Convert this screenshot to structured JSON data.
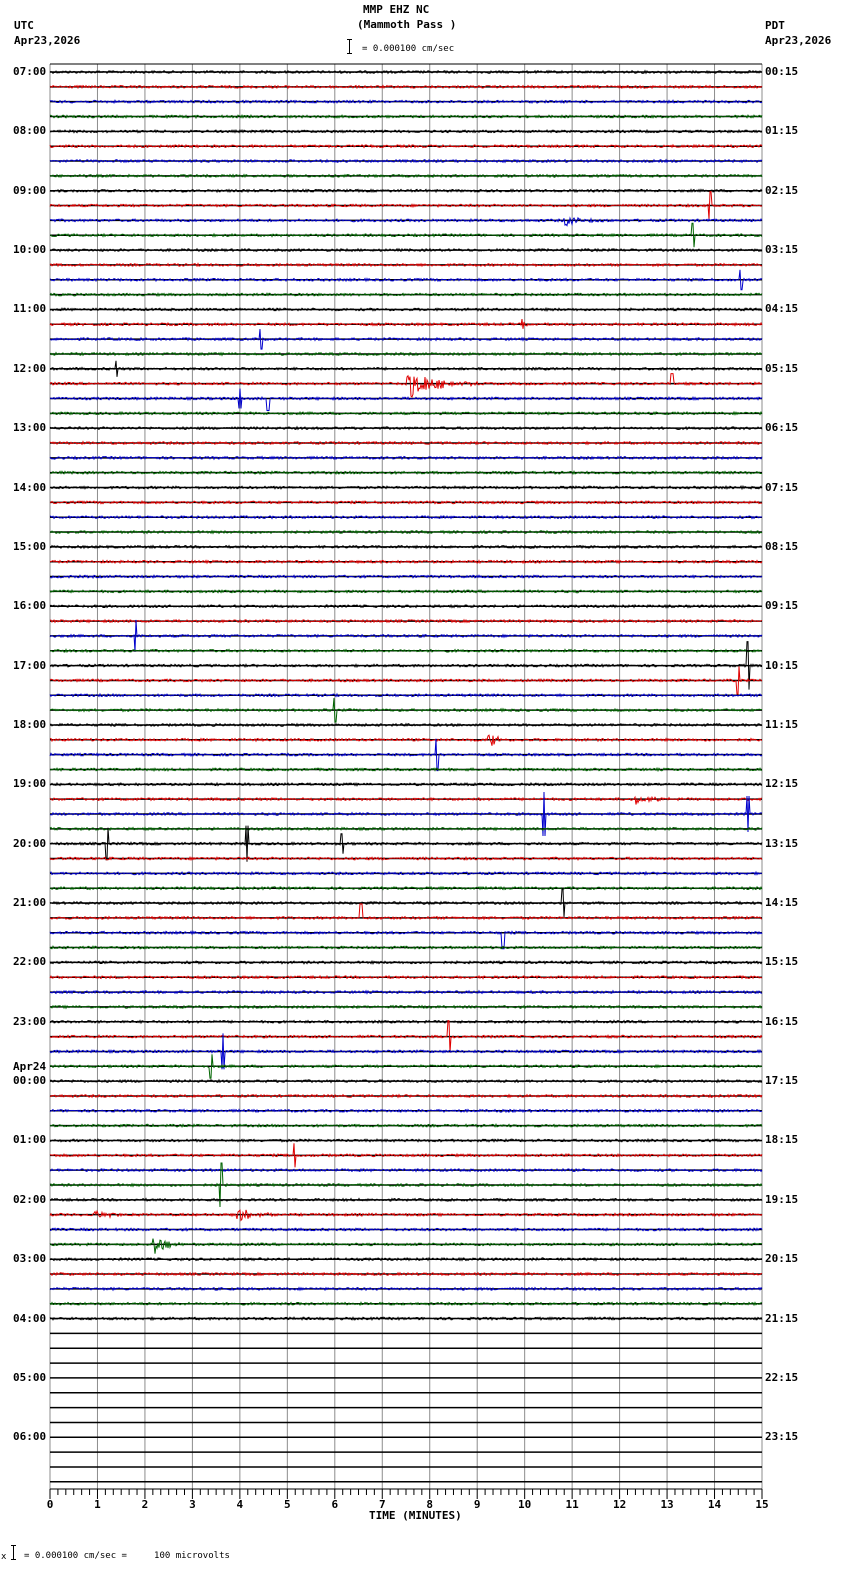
{
  "header": {
    "station": "MMP EHZ NC",
    "location": "(Mammoth Pass )",
    "scale_text": "= 0.000100 cm/sec",
    "left_tz": "UTC",
    "left_date": "Apr23,2026",
    "right_tz": "PDT",
    "right_date": "Apr23,2026"
  },
  "footer": {
    "xlabel": "TIME (MINUTES)",
    "calibration": "= 0.000100 cm/sec =     100 microvolts"
  },
  "colors": {
    "trace_cycle": [
      "#000000",
      "#e00000",
      "#0000cc",
      "#006400"
    ],
    "grid": "#8c8c8c",
    "baseline": "#000000"
  },
  "chart_data": {
    "type": "line",
    "title": "MMP EHZ NC (Mammoth Pass ) helicorder",
    "xlabel": "TIME (MINUTES)",
    "ylabel": "",
    "xlim": [
      0,
      15
    ],
    "x_ticks": [
      0,
      1,
      2,
      3,
      4,
      5,
      6,
      7,
      8,
      9,
      10,
      11,
      12,
      13,
      14,
      15
    ],
    "minor_tick_step_min": 0.1667,
    "traces_per_hour": 4,
    "trace_minutes": 15,
    "total_trace_rows": 96,
    "recorded_rows": 85,
    "left_labels_utc": [
      {
        "row": 0,
        "label": "07:00"
      },
      {
        "row": 4,
        "label": "08:00"
      },
      {
        "row": 8,
        "label": "09:00"
      },
      {
        "row": 12,
        "label": "10:00"
      },
      {
        "row": 16,
        "label": "11:00"
      },
      {
        "row": 20,
        "label": "12:00"
      },
      {
        "row": 24,
        "label": "13:00"
      },
      {
        "row": 28,
        "label": "14:00"
      },
      {
        "row": 32,
        "label": "15:00"
      },
      {
        "row": 36,
        "label": "16:00"
      },
      {
        "row": 40,
        "label": "17:00"
      },
      {
        "row": 44,
        "label": "18:00"
      },
      {
        "row": 48,
        "label": "19:00"
      },
      {
        "row": 52,
        "label": "20:00"
      },
      {
        "row": 56,
        "label": "21:00"
      },
      {
        "row": 60,
        "label": "22:00"
      },
      {
        "row": 64,
        "label": "23:00"
      },
      {
        "row": 68,
        "label": "00:00",
        "date": "Apr24"
      },
      {
        "row": 72,
        "label": "01:00"
      },
      {
        "row": 76,
        "label": "02:00"
      },
      {
        "row": 80,
        "label": "03:00"
      },
      {
        "row": 84,
        "label": "04:00"
      },
      {
        "row": 88,
        "label": "05:00"
      },
      {
        "row": 92,
        "label": "06:00"
      }
    ],
    "right_labels_pdt": [
      "00:15",
      "01:15",
      "02:15",
      "03:15",
      "04:15",
      "05:15",
      "06:15",
      "07:15",
      "08:15",
      "09:15",
      "10:15",
      "11:15",
      "12:15",
      "13:15",
      "14:15",
      "15:15",
      "16:15",
      "17:15",
      "18:15",
      "19:15",
      "20:15",
      "21:15",
      "22:15",
      "23:15"
    ],
    "events": [
      {
        "row": 21,
        "minute": 7.5,
        "duration": 1.6,
        "amp": 16,
        "type": "quake"
      },
      {
        "row": 10,
        "minute": 10.8,
        "duration": 1.0,
        "amp": 6,
        "type": "quake"
      },
      {
        "row": 49,
        "minute": 12.3,
        "duration": 0.8,
        "amp": 6,
        "type": "quake"
      },
      {
        "row": 77,
        "minute": 0.9,
        "duration": 0.9,
        "amp": 5,
        "type": "quake"
      },
      {
        "row": 77,
        "minute": 3.9,
        "duration": 1.1,
        "amp": 7,
        "type": "quake"
      },
      {
        "row": 79,
        "minute": 2.15,
        "duration": 0.6,
        "amp": 18,
        "type": "quake"
      },
      {
        "row": 45,
        "minute": 9.2,
        "duration": 0.4,
        "amp": 14,
        "type": "quake"
      },
      {
        "row": 17,
        "minute": 9.9,
        "duration": 0.3,
        "amp": 8,
        "type": "quake"
      },
      {
        "row": 20,
        "minute": 1.4,
        "duration": 0.1,
        "amp": 8,
        "type": "spike"
      },
      {
        "row": 9,
        "minute": 13.9,
        "duration": 0.05,
        "amp": 14,
        "type": "spike"
      },
      {
        "row": 11,
        "minute": 13.55,
        "duration": 0.05,
        "amp": 12,
        "type": "spike"
      },
      {
        "row": 14,
        "minute": 14.55,
        "duration": 0.05,
        "amp": 10,
        "type": "spike"
      },
      {
        "row": 18,
        "minute": 4.45,
        "duration": 0.05,
        "amp": 10,
        "type": "spike"
      },
      {
        "row": 22,
        "minute": 4.0,
        "duration": 0.05,
        "amp": 10,
        "type": "spike"
      },
      {
        "row": 22,
        "minute": 4.6,
        "duration": 0.05,
        "amp": 12,
        "type": "spike"
      },
      {
        "row": 21,
        "minute": 13.1,
        "duration": 0.05,
        "amp": 10,
        "type": "spike"
      },
      {
        "row": 38,
        "minute": 1.8,
        "duration": 0.05,
        "amp": 16,
        "type": "spike"
      },
      {
        "row": 40,
        "minute": 14.7,
        "duration": 0.05,
        "amp": 24,
        "type": "spike"
      },
      {
        "row": 41,
        "minute": 14.5,
        "duration": 0.05,
        "amp": 14,
        "type": "spike"
      },
      {
        "row": 43,
        "minute": 6.0,
        "duration": 0.05,
        "amp": 12,
        "type": "spike"
      },
      {
        "row": 46,
        "minute": 8.15,
        "duration": 0.05,
        "amp": 16,
        "type": "spike"
      },
      {
        "row": 50,
        "minute": 10.4,
        "duration": 0.05,
        "amp": 22,
        "type": "spike"
      },
      {
        "row": 50,
        "minute": 14.7,
        "duration": 0.05,
        "amp": 18,
        "type": "spike"
      },
      {
        "row": 52,
        "minute": 1.2,
        "duration": 0.05,
        "amp": 16,
        "type": "spike"
      },
      {
        "row": 52,
        "minute": 4.15,
        "duration": 0.05,
        "amp": 18,
        "type": "spike"
      },
      {
        "row": 52,
        "minute": 6.15,
        "duration": 0.05,
        "amp": 10,
        "type": "spike"
      },
      {
        "row": 56,
        "minute": 10.8,
        "duration": 0.05,
        "amp": 14,
        "type": "spike"
      },
      {
        "row": 57,
        "minute": 6.55,
        "duration": 0.05,
        "amp": 14,
        "type": "spike"
      },
      {
        "row": 58,
        "minute": 9.55,
        "duration": 0.05,
        "amp": 16,
        "type": "spike"
      },
      {
        "row": 65,
        "minute": 8.4,
        "duration": 0.05,
        "amp": 16,
        "type": "spike"
      },
      {
        "row": 66,
        "minute": 3.65,
        "duration": 0.05,
        "amp": 18,
        "type": "spike"
      },
      {
        "row": 67,
        "minute": 3.4,
        "duration": 0.05,
        "amp": 12,
        "type": "spike"
      },
      {
        "row": 73,
        "minute": 5.15,
        "duration": 0.05,
        "amp": 12,
        "type": "spike"
      },
      {
        "row": 75,
        "minute": 3.6,
        "duration": 0.05,
        "amp": 22,
        "type": "spike"
      }
    ]
  }
}
